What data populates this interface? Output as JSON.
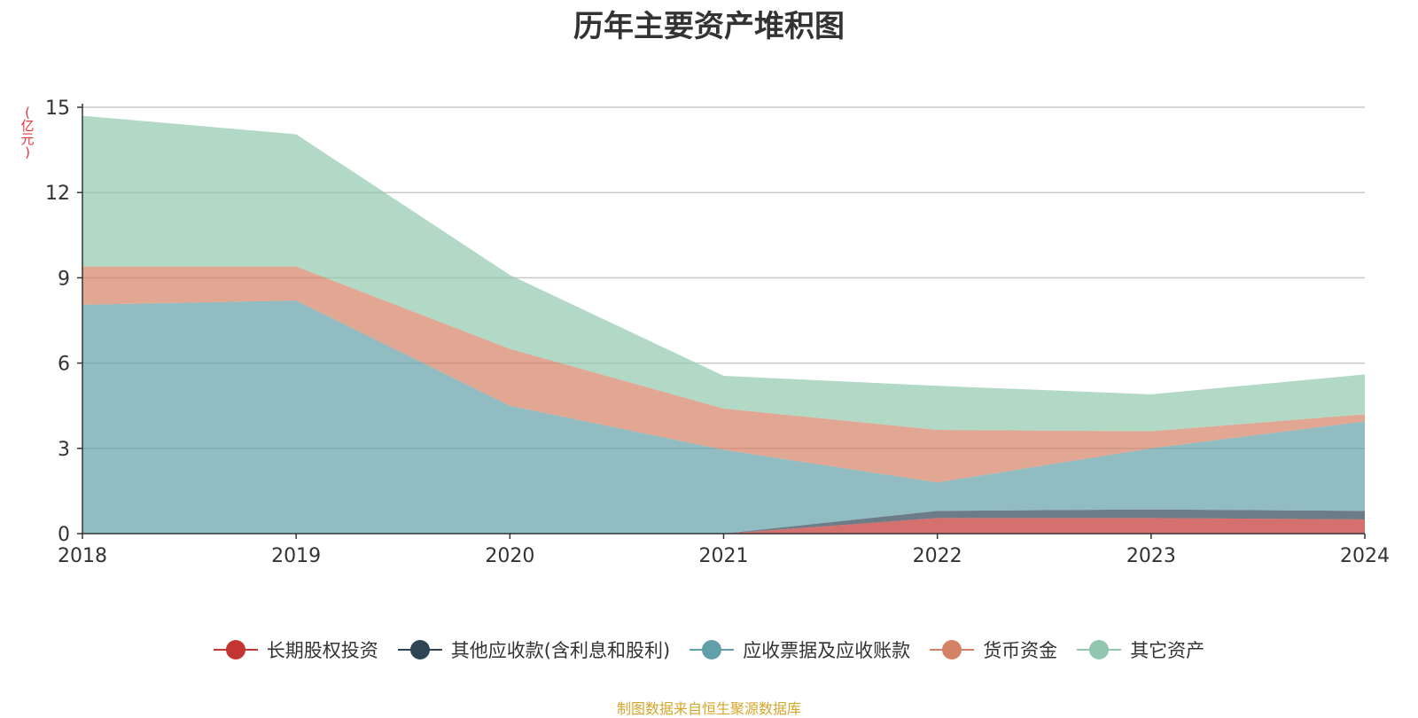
{
  "chart_data": {
    "type": "area",
    "stacked": true,
    "title": "历年主要资产堆积图",
    "unit_label": "(亿元)",
    "x": [
      "2018",
      "2019",
      "2020",
      "2021",
      "2022",
      "2023",
      "2024"
    ],
    "ylim": [
      0,
      15
    ],
    "yticks": [
      "0",
      "3",
      "6",
      "9",
      "12",
      "15"
    ],
    "grid": true,
    "legend_position": "bottom",
    "series": [
      {
        "name": "长期股权投资",
        "color": "#c23531",
        "values": [
          0,
          0,
          0,
          0,
          0.55,
          0.55,
          0.5
        ]
      },
      {
        "name": "其他应收款(含利息和股利)",
        "color": "#2f4554",
        "values": [
          0,
          0,
          0,
          0,
          0.25,
          0.3,
          0.3
        ]
      },
      {
        "name": "应收票据及应收账款",
        "color": "#61a0a8",
        "values": [
          8.05,
          8.2,
          4.5,
          2.95,
          1.0,
          2.15,
          3.15
        ]
      },
      {
        "name": "货币资金",
        "color": "#d48265",
        "values": [
          1.35,
          1.2,
          2.0,
          1.45,
          1.85,
          0.6,
          0.25
        ]
      },
      {
        "name": "其它资产",
        "color": "#91c7ae",
        "values": [
          5.3,
          4.65,
          2.6,
          1.15,
          1.55,
          1.3,
          1.4
        ]
      }
    ],
    "source_note": "制图数据来自恒生聚源数据库"
  }
}
